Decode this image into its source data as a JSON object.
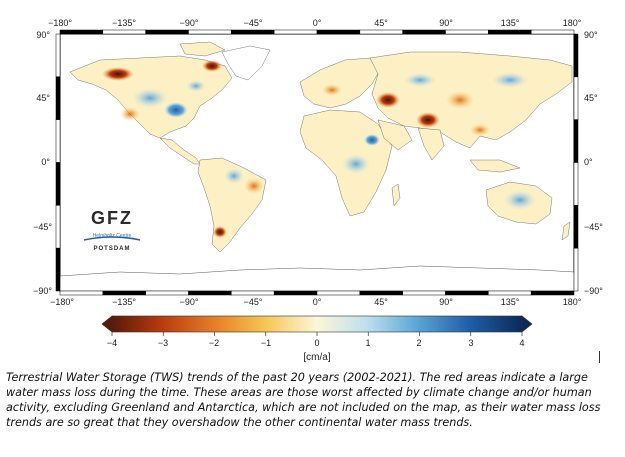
{
  "map": {
    "top_ticks": [
      "−180°",
      "−135°",
      "−90°",
      "−45°",
      "0°",
      "45°",
      "90°",
      "135°",
      "180°"
    ],
    "bottom_ticks": [
      "−180°",
      "−135°",
      "−90°",
      "−45°",
      "0°",
      "45°",
      "90°",
      "135°",
      "180°"
    ],
    "left_ticks": [
      "90°",
      "45°",
      "0°",
      "−45°",
      "−90°"
    ],
    "right_ticks": [
      "90°",
      "45°",
      "0°",
      "−45°",
      "−90°"
    ],
    "ocean_color": "#ffffff",
    "land_base_color": "#fdf6d8"
  },
  "logo": {
    "name": "GFZ",
    "subtitle": "Helmholtz Centre",
    "city": "POTSDAM"
  },
  "colorbar": {
    "ticks": [
      "−4",
      "−3",
      "−2",
      "−1",
      "0",
      "1",
      "2",
      "3",
      "4"
    ],
    "unit_label": "[cm/a]",
    "min": -4,
    "max": 4,
    "colors": [
      "#5a1a0a",
      "#b83a0e",
      "#e8842a",
      "#f7c85a",
      "#fdf6d8",
      "#bfe0ee",
      "#5fa7d6",
      "#1f5fa8",
      "#0b2a5c"
    ]
  },
  "caption": "Terrestrial Water Storage (TWS) trends of the past 20 years (2002-2021). The red areas indicate a large water mass loss during the time. These areas are those worst affected by climate change and/or human activity, excluding Greenland and Antarctica, which are not included on the map, as their water mass loss trends are so great that they overshadow the other continental water mass trends."
}
